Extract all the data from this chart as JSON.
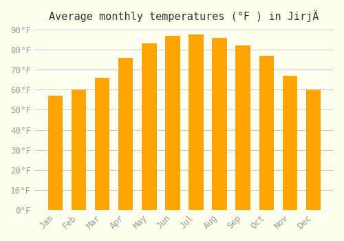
{
  "title": "Average monthly temperatures (°F ) in JirjÄ",
  "months": [
    "Jan",
    "Feb",
    "Mar",
    "Apr",
    "May",
    "Jun",
    "Jul",
    "Aug",
    "Sep",
    "Oct",
    "Nov",
    "Dec"
  ],
  "values": [
    57,
    60,
    66,
    76,
    83,
    87,
    87.5,
    86,
    82,
    77,
    67,
    60
  ],
  "bar_color": "#FFA500",
  "bar_edge_color": "#FF8C00",
  "background_color": "#FFFFF0",
  "grid_color": "#CCCCCC",
  "ylim": [
    0,
    90
  ],
  "yticks": [
    0,
    10,
    20,
    30,
    40,
    50,
    60,
    70,
    80,
    90
  ],
  "title_fontsize": 11,
  "tick_fontsize": 9,
  "tick_font_color": "#999999"
}
